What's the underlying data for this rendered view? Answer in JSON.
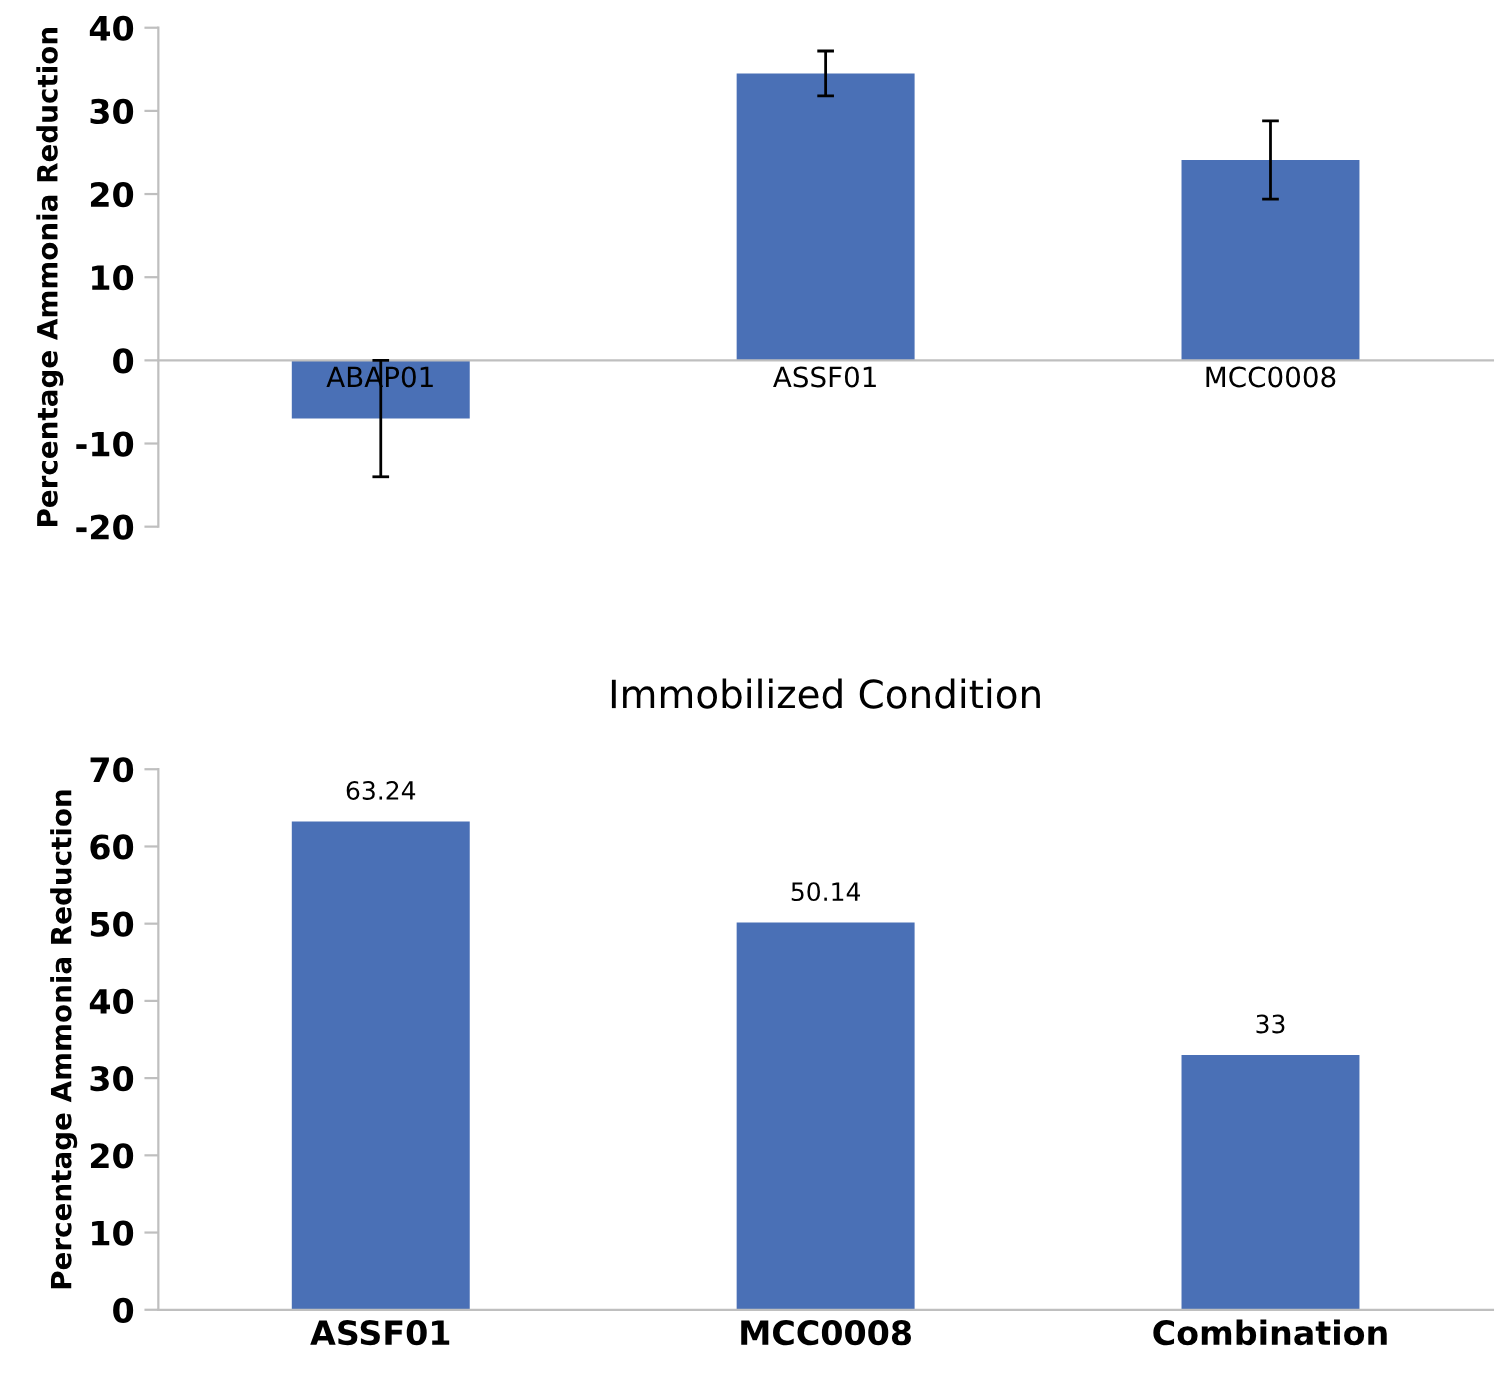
{
  "chart_data": [
    {
      "type": "bar",
      "ylabel": "Percentage Ammonia Reduction",
      "categories": [
        "ABAP01",
        "ASSF01",
        "MCC0008"
      ],
      "series": [
        {
          "color": "#4a70b6",
          "values": [
            -7,
            34.5,
            24.1
          ],
          "errors": [
            7,
            2.7,
            4.7
          ]
        }
      ],
      "ylim": [
        -20,
        40
      ],
      "yticks": [
        -20,
        -10,
        0,
        10,
        20,
        30,
        40
      ],
      "grid": false,
      "legend": false
    },
    {
      "type": "bar",
      "title": "Immobilized Condition",
      "ylabel": "Percentage Ammonia Reduction",
      "categories": [
        "ASSF01",
        "MCC0008",
        "Combination"
      ],
      "series": [
        {
          "color": "#4a70b6",
          "values": [
            63.24,
            50.14,
            33
          ]
        }
      ],
      "ylim": [
        0,
        70
      ],
      "yticks": [
        0,
        10,
        20,
        30,
        40,
        50,
        60,
        70
      ],
      "data_labels": true,
      "grid": false,
      "legend": false
    }
  ]
}
